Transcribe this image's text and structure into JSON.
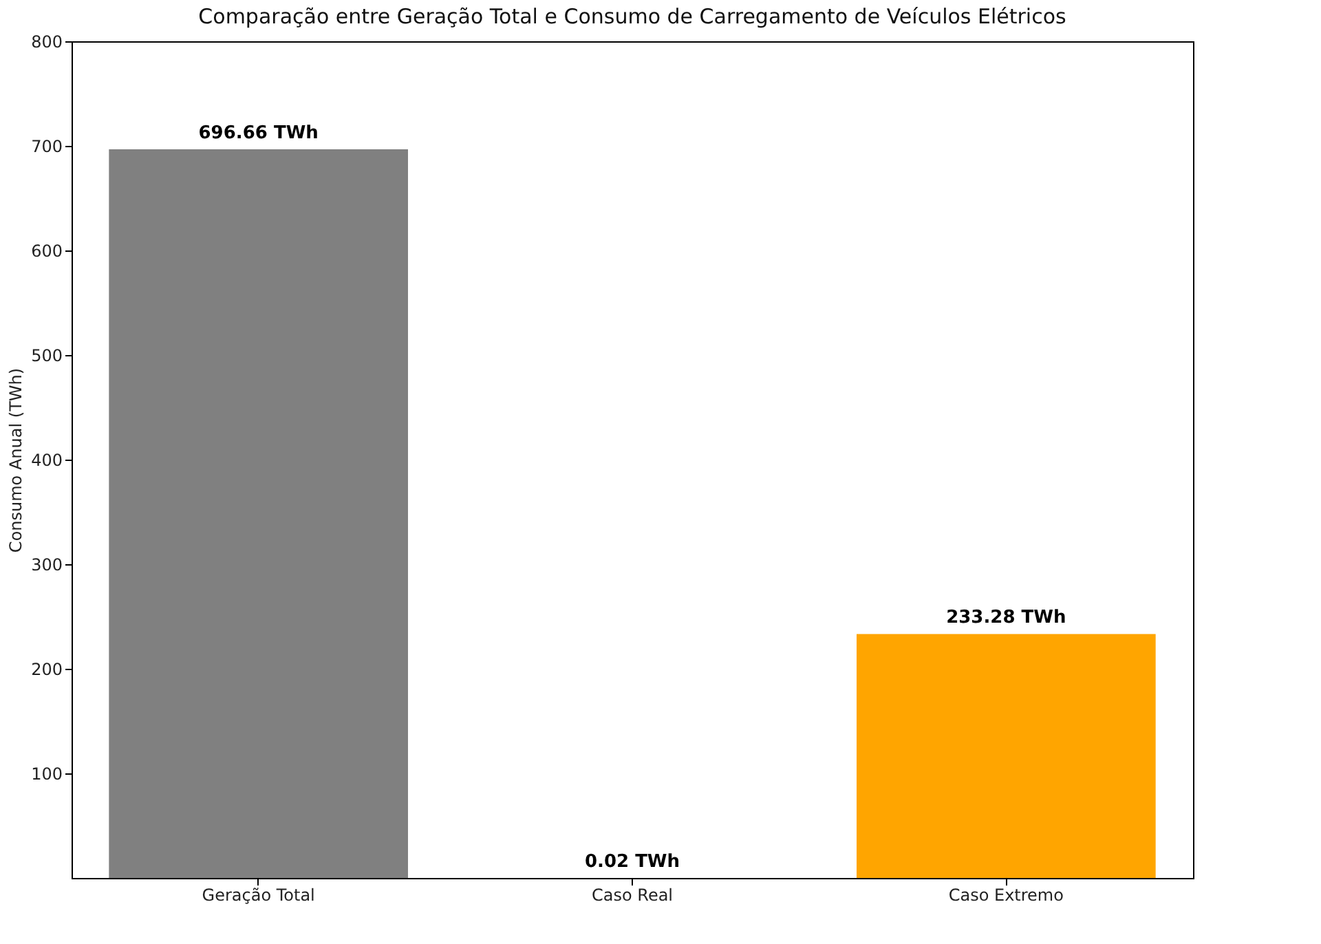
{
  "chart_data": {
    "type": "bar",
    "title": "Comparação entre Geração Total e Consumo de Carregamento de Veículos Elétricos",
    "ylabel": "Consumo Anual (TWh)",
    "categories": [
      "Geração Total",
      "Caso Real",
      "Caso Extremo"
    ],
    "values": [
      696.66,
      0.02,
      233.28
    ],
    "colors": [
      "#808080",
      "#1f77b4",
      "#ffa500"
    ],
    "value_labels": [
      "696.66 TWh",
      "0.02 TWh",
      "233.28 TWh"
    ],
    "ylim": [
      0,
      800
    ],
    "yticks": [
      100,
      200,
      300,
      400,
      500,
      600,
      700,
      800
    ],
    "grid": false,
    "legend": false
  }
}
